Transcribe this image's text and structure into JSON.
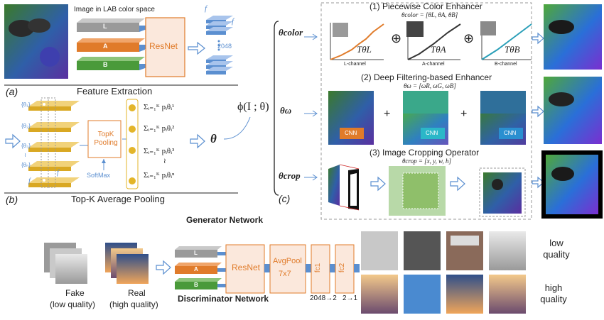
{
  "feature_extraction": {
    "caption_a": "(a)",
    "title": "Feature Extraction",
    "lab_label": "Image in LAB color space",
    "channels": [
      "L",
      "A",
      "B"
    ],
    "resnet": "ResNet",
    "f_label": "f",
    "f_label2": "f",
    "dim": "2048"
  },
  "topk": {
    "caption_b": "(b)",
    "title": "Top-K Average Pooling",
    "theta_labels": [
      "{θ₁}",
      "{θ₂}",
      "{θ₃}",
      "≀",
      "{θₙ}"
    ],
    "pooling": "TopK Pooling",
    "softmax": "SoftMax",
    "f_bottom": "f",
    "f_mid": "f",
    "sums": [
      "Σᵢ₌₁ᴷ pᵢθᵢ¹",
      "Σᵢ₌₁ᴷ pᵢθᵢ²",
      "Σᵢ₌₁ᴷ pᵢθᵢ³",
      "≀",
      "Σᵢ₌₁ᴷ pᵢθᵢⁿ"
    ],
    "theta": "θ"
  },
  "generator": {
    "phi": "ϕ(I ; θ)",
    "caption_c": "(c)",
    "title": "Generator Network",
    "param_color": "θcolor",
    "param_omega": "θω",
    "param_crop": "θcrop",
    "section1": "(1) Piecewise Color Enhancer",
    "section1_formula": "θcolor = [θL, θA, θB]",
    "curves": [
      {
        "label": "L-channel",
        "symbol": "TθL",
        "color": "#e07b2a"
      },
      {
        "label": "A-channel",
        "symbol": "TθA",
        "color": "#333333"
      },
      {
        "label": "B-channel",
        "symbol": "TθB",
        "color": "#2a9fb8"
      }
    ],
    "oplus": "⊕",
    "section2": "(2) Deep Filtering-based Enhancer",
    "section2_formula": "θω = [ωR, ωG, ωB]",
    "cnn": "CNN",
    "plus": "+",
    "section3": "(3) Image Cropping Operator",
    "section3_formula": "θcrop = [x, y, w, h]"
  },
  "discriminator": {
    "title": "Discriminator Network",
    "fake": "Fake",
    "fake_sub": "(low quality)",
    "real": "Real",
    "real_sub": "(high quality)",
    "channels": [
      "L",
      "A",
      "B"
    ],
    "resnet": "ResNet",
    "avgpool": "AvgPool",
    "avgpool_k": "7x7",
    "fc1": "fc1",
    "fc2": "fc2",
    "dim1": "2048→2",
    "dim2": "2→1",
    "low": "low quality",
    "high": "high quality"
  },
  "colors": {
    "orange": "#e07b2a",
    "blue": "#5b8fd0",
    "green": "#4a9a3a",
    "gray": "#8a8a8a",
    "resnet_fill": "#fbe8dc",
    "gold": "#e3b52a"
  }
}
